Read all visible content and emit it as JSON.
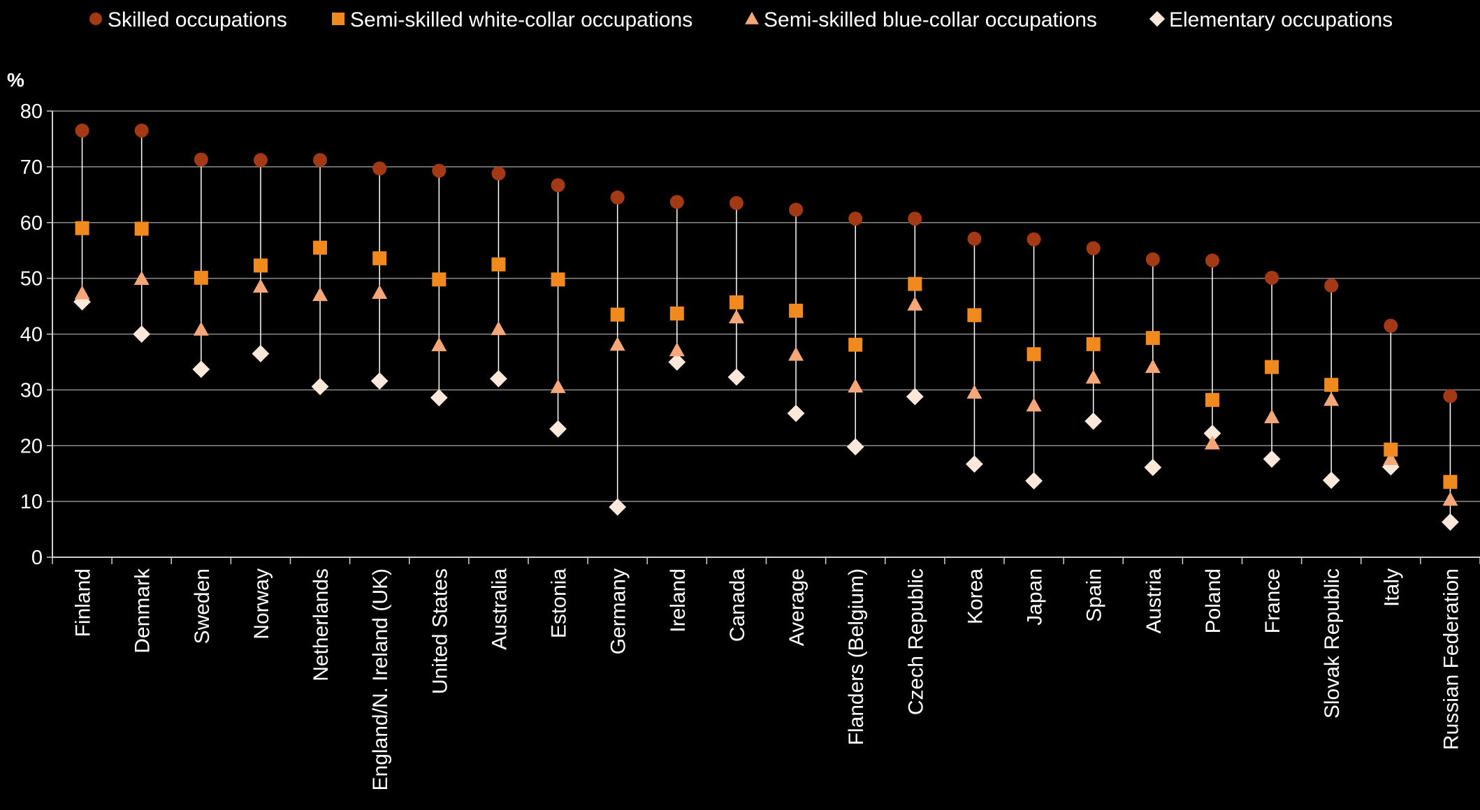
{
  "chart_data": {
    "type": "scatter",
    "title": "",
    "xlabel": "",
    "ylabel": "%",
    "ylim": [
      0,
      80
    ],
    "yticks": [
      0,
      10,
      20,
      30,
      40,
      50,
      60,
      70,
      80
    ],
    "grid": true,
    "legend_position": "top",
    "categories": [
      "Finland",
      "Denmark",
      "Sweden",
      "Norway",
      "Netherlands",
      "England/N. Ireland (UK)",
      "United States",
      "Australia",
      "Estonia",
      "Germany",
      "Ireland",
      "Canada",
      "Average",
      "Flanders (Belgium)",
      "Czech Republic",
      "Korea",
      "Japan",
      "Spain",
      "Austria",
      "Poland",
      "France",
      "Slovak Republic",
      "Italy",
      "Russian Federation"
    ],
    "series": [
      {
        "name": "Skilled occupations",
        "marker": "circle",
        "color": "#A33A15",
        "values": [
          76.5,
          76.5,
          71.3,
          71.2,
          71.2,
          69.7,
          69.3,
          68.8,
          66.7,
          64.5,
          63.7,
          63.5,
          62.3,
          60.7,
          60.7,
          57.1,
          57.0,
          55.4,
          53.4,
          53.2,
          50.1,
          48.7,
          41.5,
          28.9
        ]
      },
      {
        "name": "Semi-skilled white-collar occupations",
        "marker": "square",
        "color": "#F08A1E",
        "values": [
          59.0,
          58.9,
          50.1,
          52.3,
          55.5,
          53.6,
          49.8,
          52.5,
          49.8,
          43.5,
          43.7,
          45.7,
          44.2,
          38.1,
          49.0,
          43.4,
          36.4,
          38.2,
          39.3,
          28.2,
          34.1,
          30.9,
          19.3,
          13.5
        ]
      },
      {
        "name": "Semi-skilled blue-collar occupations",
        "marker": "triangle",
        "color": "#F5A77A",
        "values": [
          47.3,
          49.9,
          40.8,
          48.5,
          47.0,
          47.4,
          38.0,
          40.9,
          30.5,
          38.1,
          37.1,
          43.0,
          36.3,
          30.6,
          45.3,
          29.5,
          27.2,
          32.2,
          34.1,
          20.4,
          25.1,
          28.2,
          17.6,
          10.3
        ]
      },
      {
        "name": "Elementary occupations",
        "marker": "diamond",
        "color": "#FCE8DA",
        "values": [
          45.8,
          40.0,
          33.7,
          36.5,
          30.6,
          31.6,
          28.6,
          32.0,
          23.0,
          9.0,
          35.0,
          32.3,
          25.8,
          19.8,
          28.8,
          16.7,
          13.7,
          24.4,
          16.1,
          22.2,
          17.6,
          13.8,
          16.2,
          6.3
        ]
      }
    ]
  }
}
